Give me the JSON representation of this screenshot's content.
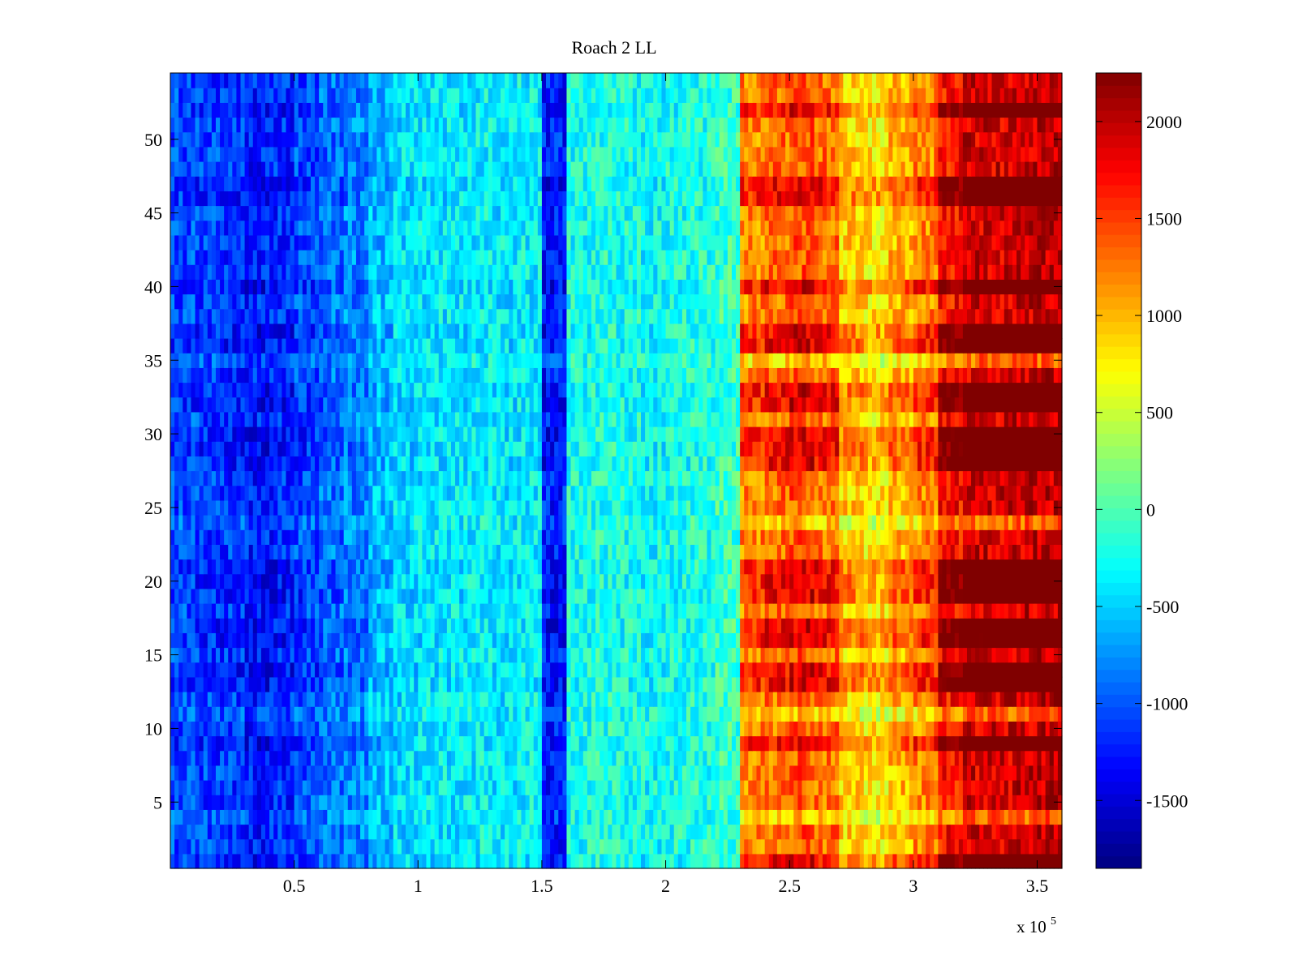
{
  "chart_data": {
    "type": "heatmap",
    "title": "Roach 2 LL",
    "xlabel": "",
    "ylabel": "",
    "x_multiplier_text": "x 10",
    "x_multiplier_exponent": "5",
    "xlim": [
      0,
      3.6
    ],
    "ylim": [
      0.5,
      54.5
    ],
    "xticks": [
      0.5,
      1,
      1.5,
      2,
      2.5,
      3,
      3.5
    ],
    "xtick_labels": [
      "0.5",
      "1",
      "1.5",
      "2",
      "2.5",
      "3",
      "3.5"
    ],
    "yticks": [
      5,
      10,
      15,
      20,
      25,
      30,
      35,
      40,
      45,
      50
    ],
    "ytick_labels": [
      "5",
      "10",
      "15",
      "20",
      "25",
      "30",
      "35",
      "40",
      "45",
      "50"
    ],
    "colorbar": {
      "colormap": "jet",
      "clim": [
        -1850,
        2250
      ],
      "ticks": [
        -1500,
        -1000,
        -500,
        0,
        500,
        1000,
        1500,
        2000
      ],
      "tick_labels": [
        "-1500",
        "-1000",
        "-500",
        "0",
        "500",
        "1000",
        "1500",
        "2000"
      ]
    },
    "n_rows": 54,
    "column_centers_x1e5": [
      0.05,
      0.15,
      0.25,
      0.35,
      0.45,
      0.55,
      0.65,
      0.75,
      0.85,
      0.95,
      1.05,
      1.15,
      1.25,
      1.35,
      1.45,
      1.55,
      1.65,
      1.75,
      1.85,
      1.95,
      2.05,
      2.15,
      2.25,
      2.35,
      2.45,
      2.55,
      2.65,
      2.75,
      2.85,
      2.95,
      3.05,
      3.15,
      3.25,
      3.35,
      3.45,
      3.55
    ],
    "mean_value_profile": [
      -1100,
      -1150,
      -1200,
      -1300,
      -1250,
      -1100,
      -950,
      -850,
      -600,
      -450,
      -400,
      -400,
      -350,
      -400,
      -350,
      -1300,
      -250,
      -200,
      -250,
      -300,
      -250,
      -200,
      -100,
      1200,
      1300,
      1400,
      1300,
      900,
      800,
      1000,
      1200,
      1700,
      1900,
      1900,
      1950,
      2000
    ],
    "strong_rows": [
      1,
      9,
      13,
      14,
      16,
      17,
      19,
      20,
      21,
      28,
      29,
      30,
      32,
      33,
      36,
      37,
      40,
      46,
      47,
      52
    ],
    "weak_rows": [
      4,
      11,
      24,
      35
    ]
  }
}
